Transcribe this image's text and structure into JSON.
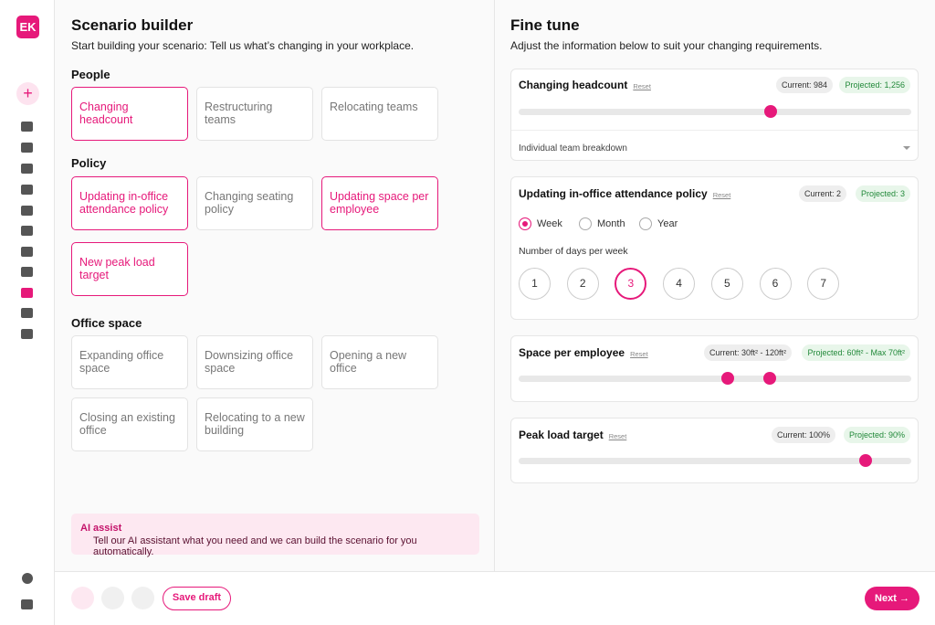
{
  "sidebar": {
    "logo": "EK"
  },
  "builder": {
    "title": "Scenario builder",
    "subtitle": "Start building your scenario: Tell us what’s changing in your workplace.",
    "sections": [
      {
        "heading": "People",
        "options": [
          {
            "label": "Changing headcount",
            "selected": true
          },
          {
            "label": "Restructuring teams",
            "selected": false
          },
          {
            "label": "Relocating teams",
            "selected": false
          }
        ]
      },
      {
        "heading": "Policy",
        "options": [
          {
            "label": "Updating in-office attendance policy",
            "selected": true
          },
          {
            "label": "Changing seating policy",
            "selected": false
          },
          {
            "label": "Updating space per employee",
            "selected": true
          },
          {
            "label": "New peak load target",
            "selected": true
          }
        ]
      },
      {
        "heading": "Office space",
        "options": [
          {
            "label": "Expanding office space",
            "selected": false
          },
          {
            "label": "Downsizing office space",
            "selected": false
          },
          {
            "label": "Opening a new office",
            "selected": false
          },
          {
            "label": "Closing an existing office",
            "selected": false
          },
          {
            "label": "Relocating to a new building",
            "selected": false
          }
        ]
      }
    ],
    "ai": {
      "title": "AI assist",
      "text": "Tell our AI assistant what you need and we can build the scenario for you automatically."
    }
  },
  "fine_tune": {
    "title": "Fine tune",
    "subtitle": "Adjust the information below to suit your changing requirements.",
    "headcount": {
      "title": "Changing headcount",
      "reset": "Reset",
      "current": "Current: 984",
      "projected": "Projected: 1,256",
      "breakdown": "Individual team breakdown"
    },
    "attendance": {
      "title": "Updating in-office attendance policy",
      "reset": "Reset",
      "current": "Current: 2",
      "projected": "Projected: 3",
      "periods": [
        {
          "label": "Week",
          "selected": true
        },
        {
          "label": "Month",
          "selected": false
        },
        {
          "label": "Year",
          "selected": false
        }
      ],
      "days_label": "Number of days per week",
      "days": [
        {
          "value": 1,
          "selected": false
        },
        {
          "value": 2,
          "selected": false
        },
        {
          "value": 3,
          "selected": true
        },
        {
          "value": 4,
          "selected": false
        },
        {
          "value": 5,
          "selected": false
        },
        {
          "value": 6,
          "selected": false
        },
        {
          "value": 7,
          "selected": false
        }
      ]
    },
    "space": {
      "title": "Space per employee",
      "reset": "Reset",
      "current": "Current: 30ft² - 120ft²",
      "projected": "Projected: 60ft² - Max 70ft²"
    },
    "peak": {
      "title": "Peak load target",
      "reset": "Reset",
      "current": "Current: 100%",
      "projected": "Projected: 90%"
    }
  },
  "footer": {
    "save": "Save draft",
    "next": "Next →"
  }
}
